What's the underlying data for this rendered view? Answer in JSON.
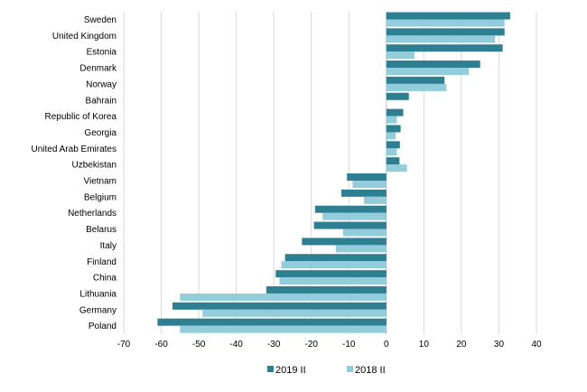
{
  "chart_data": {
    "type": "bar",
    "orientation": "horizontal",
    "categories": [
      "Sweden",
      "United Kingdom",
      "Estonia",
      "Denmark",
      "Norway",
      "Bahrain",
      "Republic of Korea",
      "Georgia",
      "United Arab Emirates",
      "Uzbekistan",
      "Vietnam",
      "Belgium",
      "Netherlands",
      "Belarus",
      "Italy",
      "Finland",
      "China",
      "Lithuania",
      "Germany",
      "Poland"
    ],
    "series": [
      {
        "name": "2019 II",
        "color": "#2e7f91",
        "values": [
          33,
          31.5,
          31,
          25,
          15.5,
          6,
          4.5,
          3.8,
          3.6,
          3.5,
          -10.5,
          -12,
          -19,
          -19.3,
          -22.5,
          -27,
          -29.5,
          -32,
          -57,
          -61
        ]
      },
      {
        "name": "2018 II",
        "color": "#93cddc",
        "values": [
          31.5,
          29,
          7.5,
          22,
          16,
          null,
          2.8,
          2.5,
          2.8,
          5.5,
          -9,
          -6,
          -17,
          -11.5,
          -13.5,
          -28,
          -28.5,
          -55,
          -49,
          -55
        ]
      }
    ],
    "xlim": [
      -70,
      40
    ],
    "xticks": [
      -70,
      -60,
      -50,
      -40,
      -30,
      -20,
      -10,
      0,
      10,
      20,
      30,
      40
    ],
    "grid": true,
    "legend": "bottom",
    "title": "",
    "xlabel": "",
    "ylabel": ""
  }
}
